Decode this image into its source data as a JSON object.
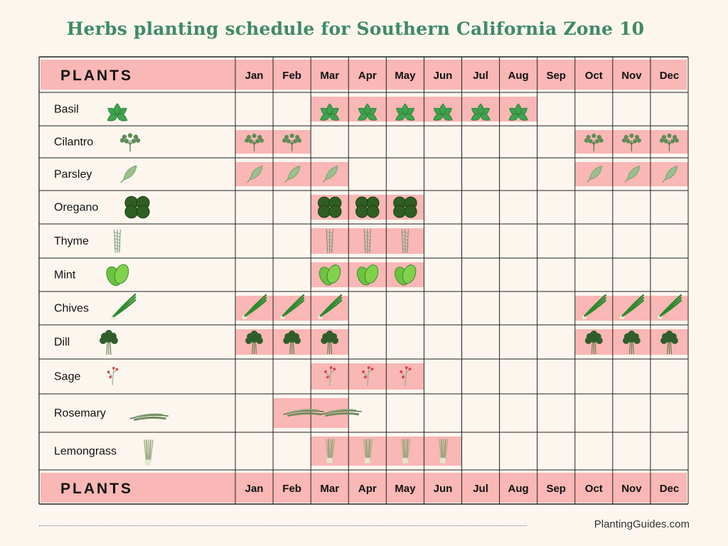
{
  "title": "Herbs planting schedule for Southern California Zone 10",
  "site": "PlantingGuides.com",
  "colors": {
    "background": "#fcf6ef",
    "header_band": "#f9b7b5",
    "planting_band": "#f9b7b5",
    "title": "#3f8a66",
    "grid": "#222222"
  },
  "chart_data": {
    "type": "table",
    "header_label": "PLANTS",
    "months": [
      "Jan",
      "Feb",
      "Mar",
      "Apr",
      "May",
      "Jun",
      "Jul",
      "Aug",
      "Sep",
      "Oct",
      "Nov",
      "Dec"
    ],
    "rows": [
      {
        "plant": "Basil",
        "icon": "basil-icon",
        "planting_months": [
          3,
          4,
          5,
          6,
          7,
          8
        ]
      },
      {
        "plant": "Cilantro",
        "icon": "cilantro-icon",
        "planting_months": [
          1,
          2,
          10,
          11,
          12
        ]
      },
      {
        "plant": "Parsley",
        "icon": "parsley-icon",
        "planting_months": [
          1,
          2,
          3,
          10,
          11,
          12
        ]
      },
      {
        "plant": "Oregano",
        "icon": "oregano-icon",
        "planting_months": [
          3,
          4,
          5
        ]
      },
      {
        "plant": "Thyme",
        "icon": "thyme-icon",
        "planting_months": [
          3,
          4,
          5
        ]
      },
      {
        "plant": "Mint",
        "icon": "mint-icon",
        "planting_months": [
          3,
          4,
          5
        ]
      },
      {
        "plant": "Chives",
        "icon": "chives-icon",
        "planting_months": [
          1,
          2,
          3,
          10,
          11,
          12
        ]
      },
      {
        "plant": "Dill",
        "icon": "dill-icon",
        "planting_months": [
          1,
          2,
          3,
          10,
          11,
          12
        ]
      },
      {
        "plant": "Sage",
        "icon": "sage-icon",
        "planting_months": [
          3,
          4,
          5
        ]
      },
      {
        "plant": "Rosemary",
        "icon": "rosemary-icon",
        "planting_months": [
          2,
          3
        ]
      },
      {
        "plant": "Lemongrass",
        "icon": "lemongrass-icon",
        "planting_months": [
          3,
          4,
          5,
          6
        ]
      }
    ]
  }
}
